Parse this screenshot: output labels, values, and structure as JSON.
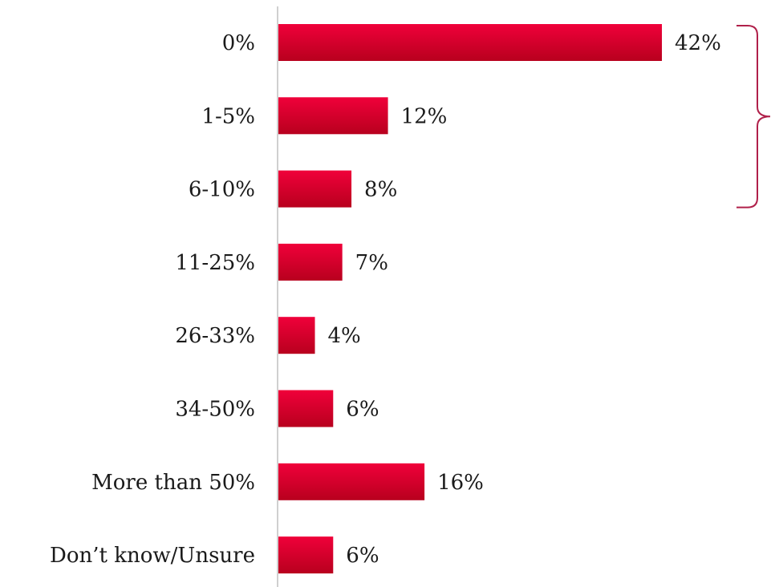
{
  "chart_data": {
    "type": "bar",
    "orientation": "horizontal",
    "title": "",
    "xlabel": "",
    "ylabel": "",
    "categories": [
      "0%",
      "1-5%",
      "6-10%",
      "11-25%",
      "26-33%",
      "34-50%",
      "More than 50%",
      "Don’t know/Unsure"
    ],
    "values": [
      42,
      12,
      8,
      7,
      4,
      6,
      16,
      6
    ],
    "value_labels": [
      "42%",
      "12%",
      "8%",
      "7%",
      "4%",
      "6%",
      "16%",
      "6%"
    ],
    "xlim": [
      0,
      42
    ],
    "grid": false,
    "legend": "none",
    "bracket": {
      "from_category": 0,
      "to_category": 2,
      "side": "right"
    },
    "colors": {
      "bar_top": "#f0003a",
      "bar_bottom": "#b8001e",
      "bracket": "#b0204a",
      "axis": "#d0d0d0"
    }
  }
}
